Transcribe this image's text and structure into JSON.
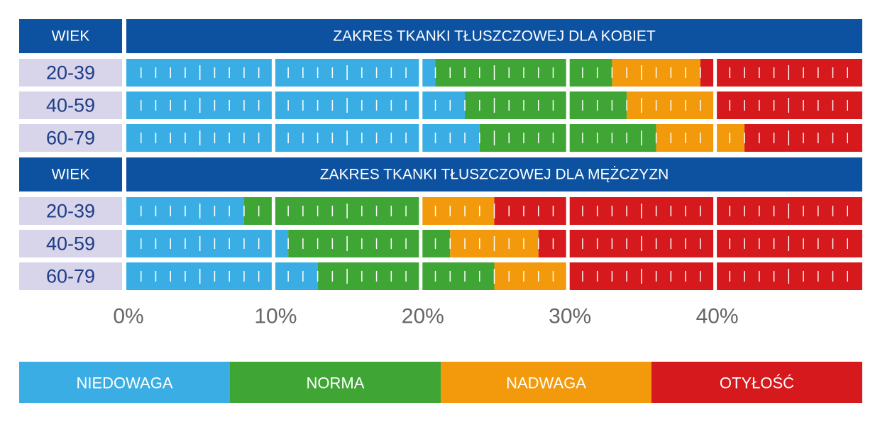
{
  "chart_data": [
    {
      "type": "bar",
      "orientation": "horizontal",
      "stacked": true,
      "category_label": "WIEK",
      "title": "ZAKRES TKANKI TŁUSZCZOWEJ DLA KOBIET",
      "categories": [
        "20-39",
        "40-59",
        "60-79"
      ],
      "series": [
        {
          "name": "NIEDOWAGA",
          "color": "#3aaee4",
          "values": [
            21,
            23,
            24
          ]
        },
        {
          "name": "NORMA",
          "color": "#3fa535",
          "values": [
            12,
            11,
            12
          ]
        },
        {
          "name": "NADWAGA",
          "color": "#f29a0c",
          "values": [
            6,
            6,
            6
          ]
        },
        {
          "name": "OTYŁOŚĆ",
          "color": "#d5191d",
          "values": [
            11,
            10,
            8
          ]
        }
      ],
      "xlim": [
        0,
        50
      ],
      "xticks": [
        {
          "value": 0,
          "label": "0%"
        },
        {
          "value": 10,
          "label": "10%"
        },
        {
          "value": 20,
          "label": "20%"
        },
        {
          "value": 30,
          "label": "30%"
        },
        {
          "value": 40,
          "label": "40%"
        }
      ]
    },
    {
      "type": "bar",
      "orientation": "horizontal",
      "stacked": true,
      "category_label": "WIEK",
      "title": "ZAKRES TKANKI TŁUSZCZOWEJ DLA MĘŻCZYZN",
      "categories": [
        "20-39",
        "40-59",
        "60-79"
      ],
      "series": [
        {
          "name": "NIEDOWAGA",
          "color": "#3aaee4",
          "values": [
            8,
            11,
            13
          ]
        },
        {
          "name": "NORMA",
          "color": "#3fa535",
          "values": [
            12,
            11,
            12
          ]
        },
        {
          "name": "NADWAGA",
          "color": "#f29a0c",
          "values": [
            5,
            6,
            5
          ]
        },
        {
          "name": "OTYŁOŚĆ",
          "color": "#d5191d",
          "values": [
            25,
            22,
            20
          ]
        }
      ],
      "xlim": [
        0,
        50
      ],
      "xticks": [
        {
          "value": 0,
          "label": "0%"
        },
        {
          "value": 10,
          "label": "10%"
        },
        {
          "value": 20,
          "label": "20%"
        },
        {
          "value": 30,
          "label": "30%"
        },
        {
          "value": 40,
          "label": "40%"
        }
      ]
    }
  ]
}
